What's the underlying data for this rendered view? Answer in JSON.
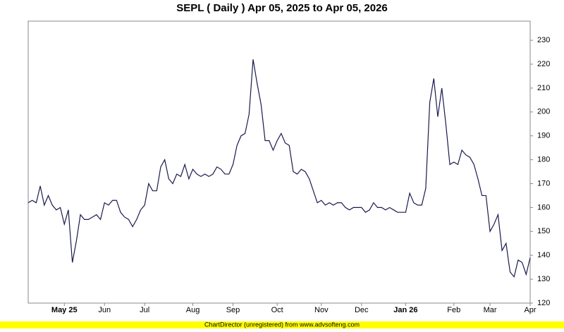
{
  "chart_data": {
    "type": "line",
    "title": "SEPL ( Daily ) Apr 05, 2025 to Apr 05, 2026",
    "footer": "ChartDirector (unregistered) from www.advsofteng.com",
    "categories": [
      null,
      null,
      null,
      null,
      null,
      null,
      null,
      null,
      null,
      "May 25",
      null,
      null,
      null,
      null,
      null,
      null,
      null,
      null,
      null,
      "Jun",
      null,
      null,
      null,
      null,
      null,
      null,
      null,
      null,
      null,
      "Jul",
      null,
      null,
      null,
      null,
      null,
      null,
      null,
      null,
      null,
      null,
      null,
      "Aug",
      null,
      null,
      null,
      null,
      null,
      null,
      null,
      null,
      null,
      "Sep",
      null,
      null,
      null,
      null,
      null,
      null,
      null,
      null,
      null,
      null,
      "Oct",
      null,
      null,
      null,
      null,
      null,
      null,
      null,
      null,
      null,
      null,
      "Nov",
      null,
      null,
      null,
      null,
      null,
      null,
      null,
      null,
      null,
      "Dec",
      null,
      null,
      null,
      null,
      null,
      null,
      null,
      null,
      null,
      null,
      "Jan 26",
      null,
      null,
      null,
      null,
      null,
      null,
      null,
      null,
      null,
      null,
      null,
      "Feb",
      null,
      null,
      null,
      null,
      null,
      null,
      null,
      null,
      "Mar",
      null,
      null,
      null,
      null,
      null,
      null,
      null,
      null,
      null,
      "Apr"
    ],
    "values": [
      162,
      163,
      162,
      169,
      161,
      165,
      161,
      159,
      160,
      153,
      159,
      137,
      146,
      157,
      155,
      155,
      156,
      157,
      155,
      162,
      161,
      163,
      163,
      158,
      156,
      155,
      152,
      155,
      159,
      161,
      170,
      167,
      167,
      177,
      180,
      172,
      170,
      174,
      173,
      178,
      172,
      176,
      174,
      173,
      174,
      173,
      174,
      177,
      176,
      174,
      174,
      178,
      186,
      190,
      191,
      199,
      222,
      212,
      203,
      188,
      188,
      184,
      188,
      191,
      187,
      186,
      175,
      174,
      176,
      175,
      172,
      167,
      162,
      163,
      161,
      162,
      161,
      162,
      162,
      160,
      159,
      160,
      160,
      160,
      158,
      159,
      162,
      160,
      160,
      159,
      160,
      159,
      158,
      158,
      158,
      166,
      162,
      161,
      161,
      168,
      204,
      214,
      198,
      210,
      195,
      178,
      179,
      178,
      184,
      182,
      181,
      178,
      172,
      165,
      165,
      150,
      153,
      157,
      142,
      145,
      133,
      131,
      138,
      137,
      132,
      139
    ],
    "color": "#1a1a4e",
    "ylim": [
      120,
      238
    ],
    "yticks": [
      120,
      130,
      140,
      150,
      160,
      170,
      180,
      190,
      200,
      210,
      220,
      230
    ],
    "grid": true,
    "y_axis_side": "right"
  }
}
